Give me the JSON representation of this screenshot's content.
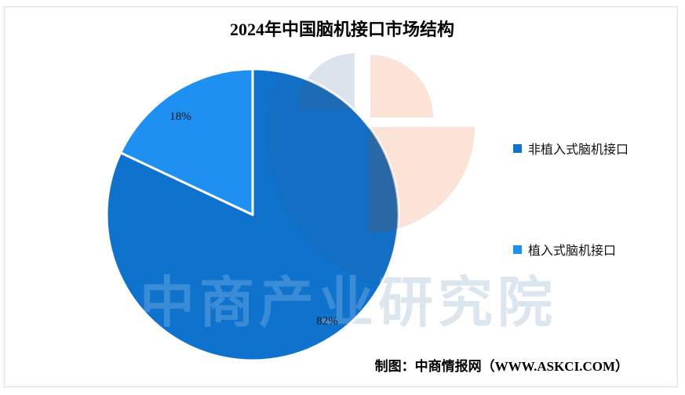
{
  "title": "2024年中国脑机接口市场结构",
  "chart_data": {
    "type": "pie",
    "title": "2024年中国脑机接口市场结构",
    "legend_position": "right",
    "total": 100,
    "series": [
      {
        "name": "非植入式脑机接口",
        "value": 82,
        "label": "82%",
        "color": "#0f73ce"
      },
      {
        "name": "植入式脑机接口",
        "value": 18,
        "label": "18%",
        "color": "#1e90f2"
      }
    ]
  },
  "legend": {
    "items": [
      {
        "label": "非植入式脑机接口",
        "color": "#0f73ce"
      },
      {
        "label": "植入式脑机接口",
        "color": "#1e90f2"
      }
    ]
  },
  "watermark": {
    "text": "中商产业研究院",
    "text_color": "#dce6ef",
    "logo_gray": "#dbe4ed",
    "logo_salmon": "#fbe3d7"
  },
  "attribution": "制图：中商情报网（WWW.ASKCI.COM）",
  "frame": {
    "border_color": "#e2e3e5",
    "background": "#ffffff"
  }
}
